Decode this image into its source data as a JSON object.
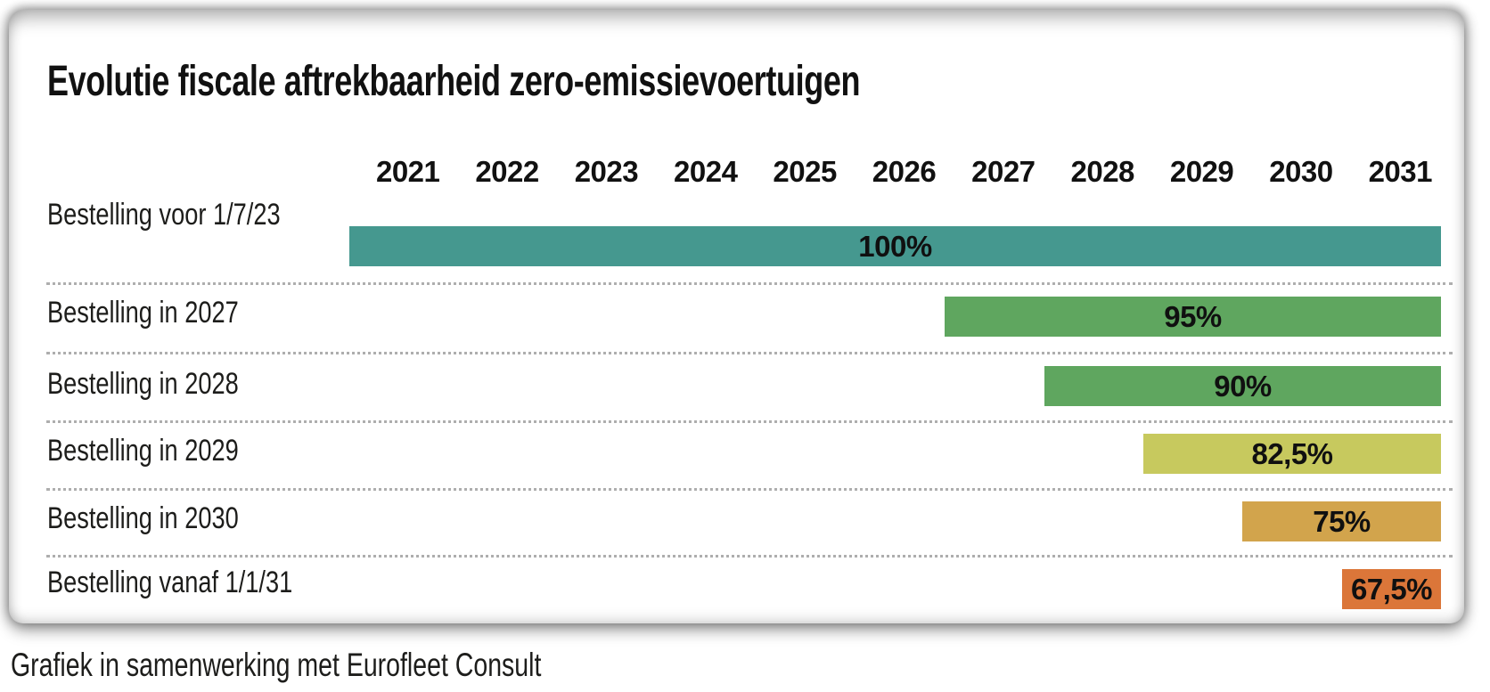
{
  "chart_data": {
    "type": "bar",
    "orientation": "horizontal",
    "title": "Evolutie fiscale aftrekbaarheid zero-emissievoertuigen",
    "x_ticks": [
      "2021",
      "2022",
      "2023",
      "2024",
      "2025",
      "2026",
      "2027",
      "2028",
      "2029",
      "2030",
      "2031"
    ],
    "x_range": [
      2021,
      2031
    ],
    "axis_position": "top",
    "grid": "dotted-row-separators",
    "unit": "%",
    "rows": [
      {
        "label": "Bestelling voor 1/7/23",
        "value": 100,
        "value_label": "100%",
        "bar_start": 2021,
        "bar_end": 2031,
        "color": "#45988F"
      },
      {
        "label": "Bestelling in 2027",
        "value": 95,
        "value_label": "95%",
        "bar_start": 2027,
        "bar_end": 2031,
        "color": "#5FA65F"
      },
      {
        "label": "Bestelling in 2028",
        "value": 90,
        "value_label": "90%",
        "bar_start": 2028,
        "bar_end": 2031,
        "color": "#5FA65F"
      },
      {
        "label": "Bestelling in 2029",
        "value": 82.5,
        "value_label": "82,5%",
        "bar_start": 2029,
        "bar_end": 2031,
        "color": "#C7C95E"
      },
      {
        "label": "Bestelling in 2030",
        "value": 75,
        "value_label": "75%",
        "bar_start": 2030,
        "bar_end": 2031,
        "color": "#D2A44C"
      },
      {
        "label": "Bestelling vanaf 1/1/31",
        "value": 67.5,
        "value_label": "67,5%",
        "bar_start": 2031,
        "bar_end": 2031,
        "color": "#DB7639"
      }
    ]
  },
  "footer": {
    "credit": "Grafiek in samenwerking met Eurofleet Consult"
  }
}
